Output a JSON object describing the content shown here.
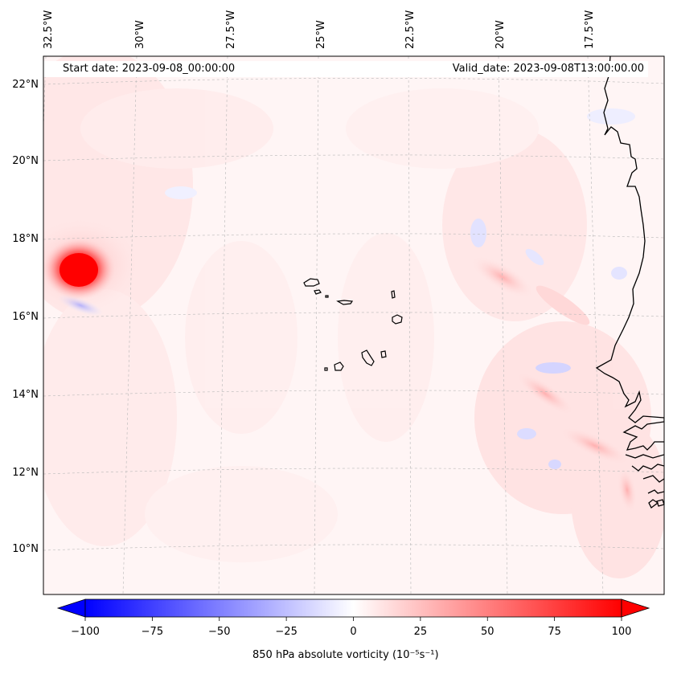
{
  "map": {
    "start_date_label": "Start date: 2023-09-08_00:00:00",
    "valid_date_label": "Valid_date: 2023-09-08T13:00:00.00",
    "longitude_labels": [
      "32.5°W",
      "30°W",
      "27.5°W",
      "25°W",
      "22.5°W",
      "20°W",
      "17.5°W"
    ],
    "latitude_labels": [
      "22°N",
      "20°N",
      "18°N",
      "16°N",
      "14°N",
      "12°N",
      "10°N"
    ],
    "region": "Eastern tropical Atlantic: Cape Verde Islands and West African coast",
    "features": {
      "vortex": "strong positive vorticity maximum near 17.2°N, 32°W",
      "negative_band": "weak negative vorticity south of the vortex",
      "coastal_streaks": "positive vorticity streaks along the West African coast"
    }
  },
  "colorbar": {
    "label": "850 hPa absolute vorticity (10⁻⁵s⁻¹)",
    "ticks": [
      "−100",
      "−75",
      "−50",
      "−25",
      "0",
      "25",
      "50",
      "75",
      "100"
    ],
    "min": -100,
    "max": 100,
    "colormap": "bwr",
    "colors": {
      "negative": "#0000ff",
      "zero": "#ffffff",
      "positive": "#ff0000"
    },
    "extend": "both"
  }
}
